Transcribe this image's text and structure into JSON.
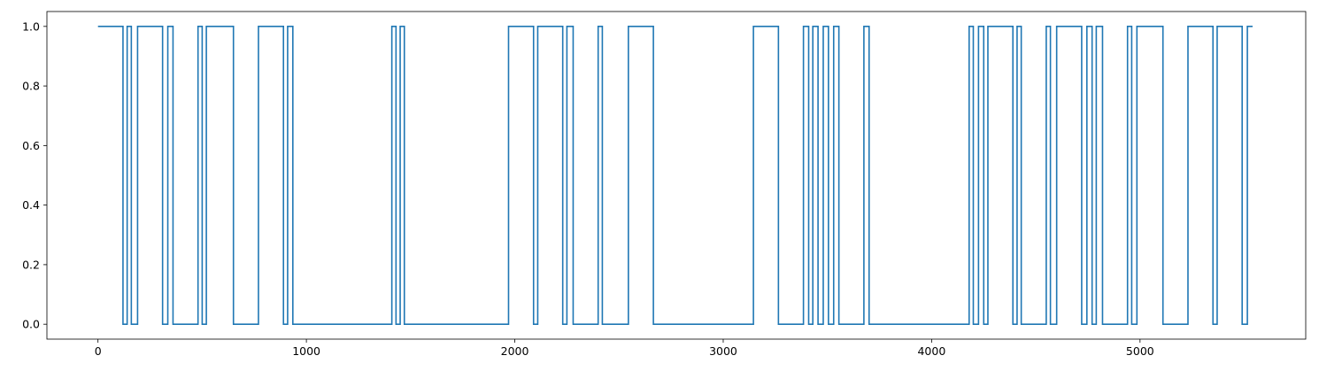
{
  "chart_data": {
    "type": "line",
    "step": true,
    "title": "",
    "xlabel": "",
    "ylabel": "",
    "xlim": [
      -245,
      5795
    ],
    "ylim": [
      -0.05,
      1.05
    ],
    "xticks": [
      0,
      1000,
      2000,
      3000,
      4000,
      5000
    ],
    "xtick_labels": [
      "0",
      "1000",
      "2000",
      "3000",
      "4000",
      "5000"
    ],
    "yticks": [
      0.0,
      0.2,
      0.4,
      0.6,
      0.8,
      1.0
    ],
    "ytick_labels": [
      "0.0",
      "0.2",
      "0.4",
      "0.6",
      "0.8",
      "1.0"
    ],
    "grid": false,
    "legend": false,
    "series": [
      {
        "color": "#1f77b4",
        "x": [
          0,
          120,
          140,
          160,
          190,
          310,
          335,
          360,
          480,
          500,
          520,
          650,
          770,
          890,
          910,
          935,
          1410,
          1430,
          1450,
          1470,
          1495,
          1970,
          2090,
          2110,
          2230,
          2250,
          2280,
          2400,
          2420,
          2545,
          2665,
          3145,
          3265,
          3385,
          3410,
          3430,
          3455,
          3480,
          3505,
          3530,
          3555,
          3675,
          3700,
          4180,
          4200,
          4225,
          4250,
          4270,
          4390,
          4410,
          4430,
          4550,
          4570,
          4600,
          4720,
          4745,
          4770,
          4790,
          4820,
          4940,
          4960,
          4985,
          5110,
          5230,
          5350,
          5370,
          5490,
          5515,
          5540
        ],
        "y": [
          1,
          0,
          1,
          0,
          1,
          0,
          1,
          0,
          1,
          0,
          1,
          0,
          1,
          0,
          1,
          0,
          1,
          0,
          1,
          0,
          0,
          1,
          0,
          1,
          0,
          1,
          0,
          1,
          0,
          1,
          0,
          1,
          0,
          1,
          0,
          1,
          0,
          1,
          0,
          1,
          0,
          1,
          0,
          1,
          0,
          1,
          0,
          1,
          0,
          1,
          0,
          1,
          0,
          1,
          0,
          1,
          0,
          1,
          0,
          1,
          0,
          1,
          0,
          1,
          0,
          1,
          0,
          1,
          1
        ]
      }
    ]
  }
}
